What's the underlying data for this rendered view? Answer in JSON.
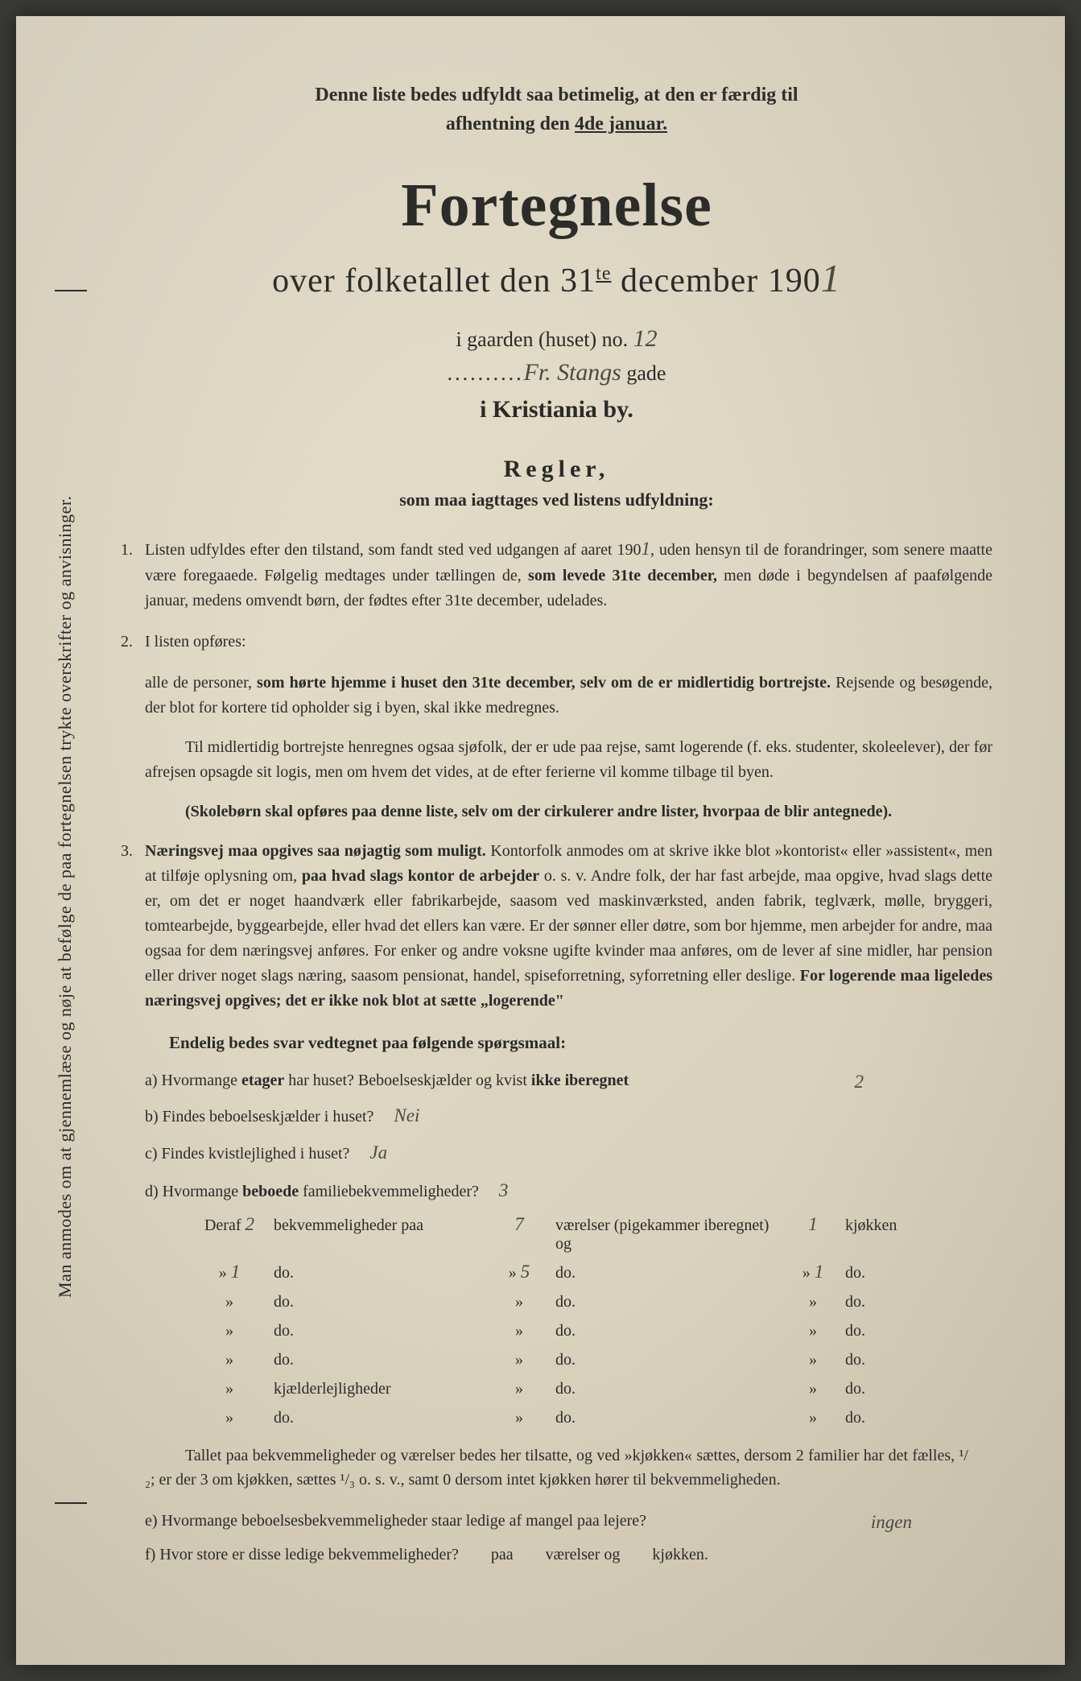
{
  "colors": {
    "paper_bg": "#ddd6c2",
    "text": "#2a2a28",
    "handwriting": "#4a4a42"
  },
  "vertical_margin_text": "Man anmodes om at gjennemlæse og nøje at befølge de paa fortegnelsen trykte overskrifter og anvisninger.",
  "top_note": {
    "line1": "Denne liste bedes udfyldt saa betimelig, at den er færdig til",
    "line2_prefix": "afhentning den ",
    "line2_underlined": "4de januar."
  },
  "title": "Fortegnelse",
  "subtitle_prefix": "over folketallet den 31",
  "subtitle_sup": "te",
  "subtitle_suffix": " december 190",
  "year_digit": "1",
  "house": {
    "label_prefix": "i gaarden (huset) no. ",
    "number": "12"
  },
  "street": {
    "name": "Fr. Stangs",
    "suffix": " gade"
  },
  "city": "i Kristiania by.",
  "rules": {
    "title": "Regler,",
    "subtitle": "som maa iagttages ved listens udfyldning:",
    "rule1": {
      "num": "1.",
      "text_a": "Listen udfyldes efter den tilstand, som fandt sted ved udgangen af aaret 190",
      "year": "1",
      "text_b": ", uden hensyn til de forandringer, som senere maatte være foregaaede. Følgelig medtages under tællingen de, ",
      "bold_b": "som levede 31te december,",
      "text_c": " men døde i begyndelsen af paafølgende januar, medens omvendt børn, der fødtes efter 31te december, udelades."
    },
    "rule2": {
      "num": "2.",
      "intro": "I listen opføres:",
      "para1_a": "alle de personer, ",
      "para1_bold": "som hørte hjemme i huset den 31te december, selv om de er midlertidig bortrejste.",
      "para1_b": " Rejsende og besøgende, der blot for kortere tid opholder sig i byen, skal ikke medregnes.",
      "para2": "Til midlertidig bortrejste henregnes ogsaa sjøfolk, der er ude paa rejse, samt logerende (f. eks. studenter, skoleelever), der før afrejsen opsagde sit logis, men om hvem det vides, at de efter ferierne vil komme tilbage til byen.",
      "para3": "(Skolebørn skal opføres paa denne liste, selv om der cirkulerer andre lister, hvorpaa de blir antegnede)."
    },
    "rule3": {
      "num": "3.",
      "bold_a": "Næringsvej maa opgives saa nøjagtig som muligt.",
      "text_a": " Kontorfolk anmodes om at skrive ikke blot »kontorist« eller »assistent«, men at tilføje oplysning om, ",
      "bold_b": "paa hvad slags kontor de arbejder",
      "text_b": " o. s. v. Andre folk, der har fast arbejde, maa opgive, hvad slags dette er, om det er noget haandværk eller fabrikarbejde, saasom ved maskinværksted, anden fabrik, teglværk, mølle, bryggeri, tomtearbejde, byggearbejde, eller hvad det ellers kan være. Er der sønner eller døtre, som bor hjemme, men arbejder for andre, maa ogsaa for dem næringsvej anføres. For enker og andre voksne ugifte kvinder maa anføres, om de lever af sine midler, har pension eller driver noget slags næring, saasom pensionat, handel, spiseforretning, syforretning eller deslige. ",
      "bold_c": "For logerende maa ligeledes næringsvej opgives; det er ikke nok blot at sætte „logerende\""
    }
  },
  "questions": {
    "title": "Endelig bedes svar vedtegnet paa følgende spørgsmaal:",
    "a": {
      "label": "a)",
      "text": "Hvormange ",
      "bold": "etager",
      "text2": " har huset? Beboelseskjælder og kvist ",
      "bold2": "ikke iberegnet",
      "answer": "2"
    },
    "b": {
      "label": "b)",
      "text": "Findes beboelseskjælder i huset?",
      "answer": "Nei"
    },
    "c": {
      "label": "c)",
      "text": "Findes kvistlejlighed i huset?",
      "answer": "Ja"
    },
    "d": {
      "label": "d)",
      "text": "Hvormange ",
      "bold": "beboede",
      "text2": " familiebekvemmeligheder?",
      "answer": "3"
    }
  },
  "bekv": {
    "header": {
      "prefix": "Deraf ",
      "count": "2",
      "mid": " bekvemmeligheder paa ",
      "rooms": "7",
      "suffix": " værelser (pigekammer iberegnet) og ",
      "kitchen": "1",
      "end": " kjøkken"
    },
    "rows": [
      {
        "c1": "1",
        "c2": "do.",
        "c3": "5",
        "c4": "do.",
        "c5": "1",
        "c6": "do."
      },
      {
        "c1": "",
        "c2": "do.",
        "c3": "",
        "c4": "do.",
        "c5": "",
        "c6": "do."
      },
      {
        "c1": "",
        "c2": "do.",
        "c3": "",
        "c4": "do.",
        "c5": "",
        "c6": "do."
      },
      {
        "c1": "",
        "c2": "do.",
        "c3": "",
        "c4": "do.",
        "c5": "",
        "c6": "do."
      },
      {
        "c1": "",
        "c2": "kjælderlejligheder",
        "c3": "",
        "c4": "do.",
        "c5": "",
        "c6": "do."
      },
      {
        "c1": "",
        "c2": "do.",
        "c3": "",
        "c4": "do.",
        "c5": "",
        "c6": "do."
      }
    ]
  },
  "footer_para": "Tallet paa bekvemmeligheder og værelser bedes her tilsatte, og ved »kjøkken« sættes, dersom 2 familier har det fælles, ¹/₂; er der 3 om kjøkken, sættes ¹/₃ o. s. v., samt 0 dersom intet kjøkken hører til bekvemmeligheden.",
  "question_e": {
    "label": "e)",
    "text": "Hvormange beboelsesbekvemmeligheder staar ledige af mangel paa lejere?",
    "answer": "ingen"
  },
  "question_f": {
    "label": "f)",
    "text": "Hvor store er disse ledige bekvemmeligheder?",
    "mid": "paa",
    "mid2": "værelser og",
    "end": "kjøkken."
  }
}
